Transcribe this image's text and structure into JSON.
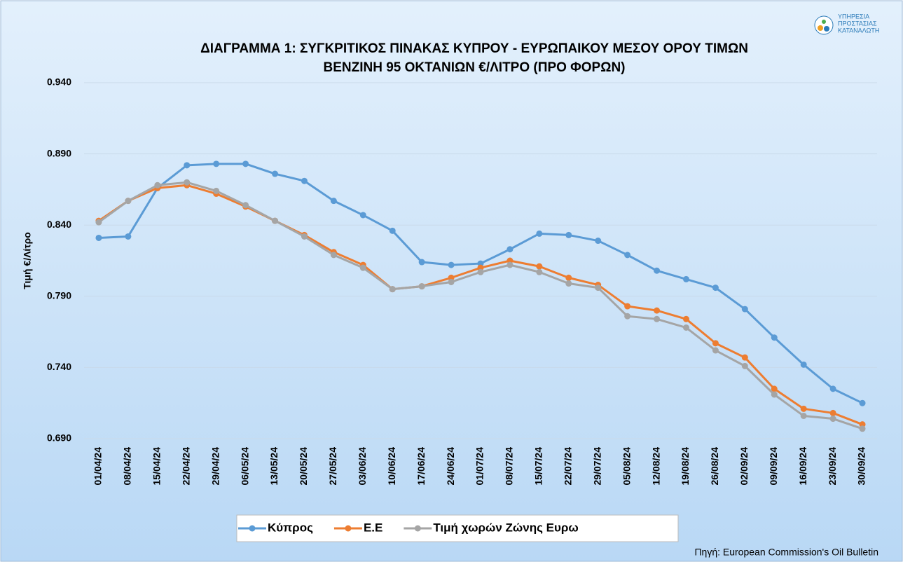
{
  "chart_data": {
    "type": "line",
    "title": [
      "ΔΙΑΓΡΑΜΜΑ 1: ΣΥΓΚΡΙΤΙΚΟΣ ΠΙΝΑΚΑΣ ΚΥΠΡΟΥ - ΕΥΡΩΠΑΙΚΟΥ ΜΕΣΟΥ ΟΡΟΥ ΤΙΜΩΝ",
      "ΒΕΝΖΙΝΗ 95 ΟΚΤΑΝΙΩΝ €/ΛΙΤΡΟ (ΠΡΟ ΦΟΡΩΝ)"
    ],
    "y_label": "Τιμή €/Λίτρο",
    "source": "Πηγή: European Commission's Oil Bulletin",
    "logo": [
      "ΥΠΗΡΕΣΙΑ",
      "ΠΡΟΣΤΑΣΙΑΣ",
      "ΚΑΤΑΝΑΛΩΤΗ"
    ],
    "categories": [
      "01/04/24",
      "08/04/24",
      "15/04/24",
      "22/04/24",
      "29/04/24",
      "06/05/24",
      "13/05/24",
      "20/05/24",
      "27/05/24",
      "03/06/24",
      "10/06/24",
      "17/06/24",
      "24/06/24",
      "01/07/24",
      "08/07/24",
      "15/07/24",
      "22/07/24",
      "29/07/24",
      "05/08/24",
      "12/08/24",
      "19/08/24",
      "26/08/24",
      "02/09/24",
      "09/09/24",
      "16/09/24",
      "23/09/24",
      "30/09/24"
    ],
    "series": [
      {
        "name": "Κύπρος",
        "color": "#5b9bd5",
        "values": [
          0.831,
          0.832,
          0.866,
          0.882,
          0.883,
          0.883,
          0.876,
          0.871,
          0.857,
          0.847,
          0.836,
          0.814,
          0.812,
          0.813,
          0.823,
          0.834,
          0.833,
          0.829,
          0.819,
          0.808,
          0.802,
          0.796,
          0.781,
          0.761,
          0.742,
          0.725,
          0.715
        ]
      },
      {
        "name": "Ε.Ε",
        "color": "#ed7d31",
        "values": [
          0.843,
          0.857,
          0.866,
          0.868,
          0.862,
          0.853,
          0.843,
          0.833,
          0.821,
          0.812,
          0.795,
          0.797,
          0.803,
          0.81,
          0.815,
          0.811,
          0.803,
          0.798,
          0.783,
          0.78,
          0.774,
          0.757,
          0.747,
          0.725,
          0.711,
          0.708,
          0.7
        ]
      },
      {
        "name": "Τιμή χωρών Ζώνης Ευρω",
        "color": "#a5a5a5",
        "values": [
          0.842,
          0.857,
          0.868,
          0.87,
          0.864,
          0.854,
          0.843,
          0.832,
          0.819,
          0.81,
          0.795,
          0.797,
          0.8,
          0.807,
          0.812,
          0.807,
          0.799,
          0.796,
          0.776,
          0.774,
          0.768,
          0.752,
          0.741,
          0.721,
          0.706,
          0.704,
          0.697
        ]
      }
    ],
    "ylim": [
      0.69,
      0.94
    ],
    "yticks": [
      {
        "value": 0.69,
        "label": "0.690"
      },
      {
        "value": 0.74,
        "label": "0.740"
      },
      {
        "value": 0.79,
        "label": "0.790"
      },
      {
        "value": 0.84,
        "label": "0.840"
      },
      {
        "value": 0.89,
        "label": "0.890"
      },
      {
        "value": 0.94,
        "label": "0.940"
      }
    ],
    "grid": true,
    "legend": "bottom"
  }
}
